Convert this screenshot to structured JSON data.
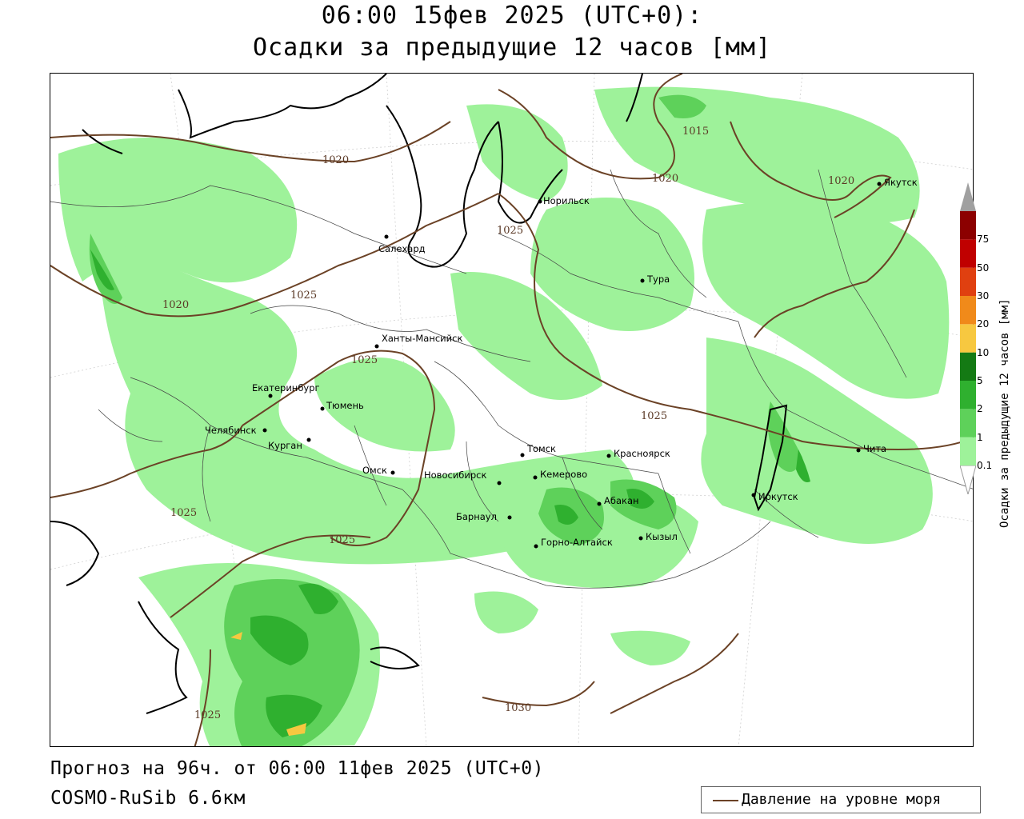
{
  "title_line1": "06:00 15фев 2025 (UTC+0):",
  "title_line2": "Осадки за предыдущие 12 часов [мм]",
  "forecast_line": "Прогноз на 96ч. от 06:00 11фев 2025 (UTC+0)",
  "model_line": "COSMO-RuSib 6.6км",
  "legend": {
    "line_label": "Давление на уровне моря",
    "line_color": "#6b4226"
  },
  "colorbar": {
    "title": "Осадки за предыдущие 12 часов [мм]",
    "levels": [
      "0.1",
      "1",
      "2",
      "5",
      "10",
      "20",
      "30",
      "50",
      "75"
    ],
    "colors": [
      "#9ef29a",
      "#5ed15a",
      "#2fb02f",
      "#147a14",
      "#f7c840",
      "#f08a1a",
      "#e04010",
      "#c00000",
      "#8c0000"
    ]
  },
  "cities": [
    {
      "name": "Норильск"
    },
    {
      "name": "Салехард"
    },
    {
      "name": "Тура"
    },
    {
      "name": "Якутск"
    },
    {
      "name": "Ханты-Мансийск"
    },
    {
      "name": "Екатеринбург"
    },
    {
      "name": "Тюмень"
    },
    {
      "name": "Челябинск"
    },
    {
      "name": "Курган"
    },
    {
      "name": "Омск"
    },
    {
      "name": "Новосибирск"
    },
    {
      "name": "Томск"
    },
    {
      "name": "Кемерово"
    },
    {
      "name": "Красноярск"
    },
    {
      "name": "Абакан"
    },
    {
      "name": "Барнаул"
    },
    {
      "name": "Горно-Алтайск"
    },
    {
      "name": "Кызыл"
    },
    {
      "name": "Иркутск"
    },
    {
      "name": "Чита"
    }
  ],
  "isobar_labels": [
    "1015",
    "1020",
    "1020",
    "1020",
    "1020",
    "1025",
    "1025",
    "1025",
    "1025",
    "1025",
    "1025",
    "1025",
    "1030"
  ]
}
